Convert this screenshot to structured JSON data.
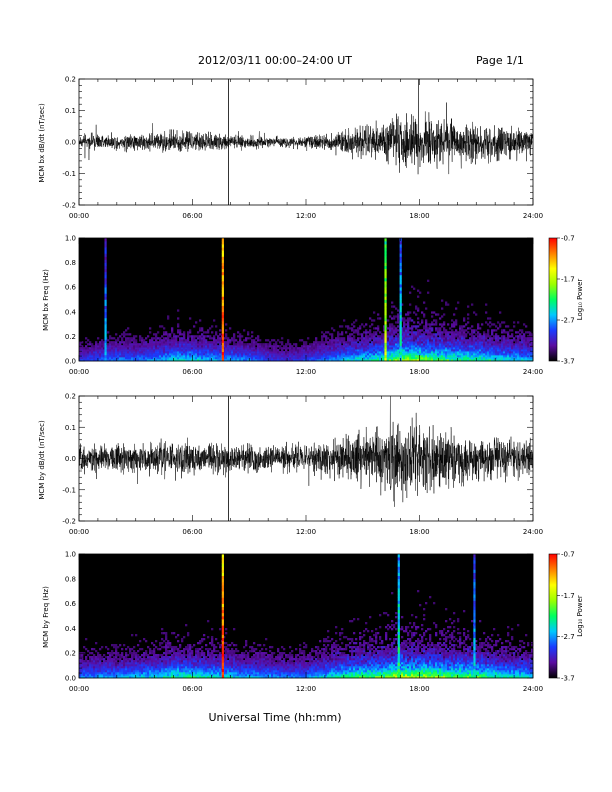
{
  "header": {
    "title": "2012/03/11  00:00–24:00 UT",
    "page": "Page 1/1"
  },
  "footer": {
    "xlabel": "Universal Time (hh:mm)"
  },
  "colorbar": {
    "label": "Log₁₀ Power",
    "ticks": [
      "-0.7",
      "-1.7",
      "-2.7",
      "-3.7"
    ],
    "range": [
      -3.7,
      -0.7
    ],
    "colormap": [
      "#000000",
      "#5a0ca0",
      "#1a3cff",
      "#00c8ff",
      "#00ff60",
      "#9cff00",
      "#ffff00",
      "#ff8000",
      "#ff0000"
    ]
  },
  "chart_data": [
    {
      "type": "line",
      "id": "p1",
      "ylabel": "MCM bx dB/dt (nT/sec)",
      "xlim": [
        0,
        24
      ],
      "ylim": [
        -0.2,
        0.2
      ],
      "xticks": [
        "00:00",
        "06:00",
        "12:00",
        "18:00",
        "24:00"
      ],
      "yticks": [
        "0.2",
        "0.1",
        "0.0",
        "-0.1",
        "-0.2"
      ],
      "series": [
        {
          "x": [
            0,
            1,
            2,
            3,
            4,
            5,
            6,
            7,
            8,
            9,
            10,
            11,
            12,
            13,
            14,
            15,
            16,
            17,
            18,
            19,
            20,
            21,
            22,
            23,
            24
          ],
          "amplitude": [
            0.03,
            0.035,
            0.035,
            0.04,
            0.045,
            0.05,
            0.05,
            0.045,
            0.04,
            0.035,
            0.025,
            0.025,
            0.03,
            0.04,
            0.06,
            0.08,
            0.09,
            0.13,
            0.14,
            0.12,
            0.1,
            0.09,
            0.08,
            0.07,
            0.06
          ]
        }
      ],
      "markers": [
        {
          "x": 7.9,
          "y0": -0.2,
          "y1": 0.2
        }
      ]
    },
    {
      "type": "heatmap",
      "id": "p2",
      "ylabel": "MCM bx Freq (Hz)",
      "xlim": [
        0,
        24
      ],
      "ylim": [
        0,
        1.0
      ],
      "xticks": [
        "00:00",
        "06:00",
        "12:00",
        "18:00",
        "24:00"
      ],
      "yticks": [
        "1.0",
        "0.8",
        "0.6",
        "0.4",
        "0.2",
        "0.0"
      ],
      "activity": [
        0.35,
        0.4,
        0.45,
        0.45,
        0.5,
        0.6,
        0.6,
        0.55,
        0.5,
        0.45,
        0.35,
        0.3,
        0.35,
        0.45,
        0.55,
        0.65,
        0.7,
        0.95,
        0.9,
        0.8,
        0.75,
        0.7,
        0.65,
        0.6,
        0.55
      ],
      "vlines": [
        {
          "x": 1.4,
          "value": -2.6
        },
        {
          "x": 7.6,
          "value": -0.8
        },
        {
          "x": 16.2,
          "value": -1.6
        },
        {
          "x": 17.0,
          "value": -2.4
        }
      ]
    },
    {
      "type": "line",
      "id": "p3",
      "ylabel": "MCM by dB/dt (nT/sec)",
      "xlim": [
        0,
        24
      ],
      "ylim": [
        -0.2,
        0.2
      ],
      "xticks": [
        "00:00",
        "06:00",
        "12:00",
        "18:00",
        "24:00"
      ],
      "yticks": [
        "0.2",
        "0.1",
        "0.0",
        "-0.1",
        "-0.2"
      ],
      "series": [
        {
          "x": [
            0,
            1,
            2,
            3,
            4,
            5,
            6,
            7,
            8,
            9,
            10,
            11,
            12,
            13,
            14,
            15,
            16,
            17,
            18,
            19,
            20,
            21,
            22,
            23,
            24
          ],
          "amplitude": [
            0.06,
            0.065,
            0.07,
            0.07,
            0.075,
            0.08,
            0.08,
            0.075,
            0.07,
            0.065,
            0.06,
            0.06,
            0.07,
            0.09,
            0.11,
            0.13,
            0.14,
            0.18,
            0.17,
            0.15,
            0.13,
            0.12,
            0.1,
            0.09,
            0.08
          ]
        }
      ],
      "markers": [
        {
          "x": 7.9,
          "y0": -0.2,
          "y1": 0.2
        }
      ]
    },
    {
      "type": "heatmap",
      "id": "p4",
      "ylabel": "MCM by Freq (Hz)",
      "xlim": [
        0,
        24
      ],
      "ylim": [
        0,
        1.0
      ],
      "xticks": [
        "00:00",
        "06:00",
        "12:00",
        "18:00",
        "24:00"
      ],
      "yticks": [
        "1.0",
        "0.8",
        "0.6",
        "0.4",
        "0.2",
        "0.0"
      ],
      "activity": [
        0.45,
        0.5,
        0.5,
        0.55,
        0.6,
        0.7,
        0.7,
        0.65,
        0.6,
        0.55,
        0.5,
        0.45,
        0.5,
        0.6,
        0.7,
        0.8,
        0.85,
        1.0,
        0.95,
        0.9,
        0.85,
        0.8,
        0.7,
        0.65,
        0.6
      ],
      "vlines": [
        {
          "x": 7.6,
          "value": -0.8
        },
        {
          "x": 16.9,
          "value": -2.2
        },
        {
          "x": 20.9,
          "value": -2.5
        }
      ]
    }
  ]
}
